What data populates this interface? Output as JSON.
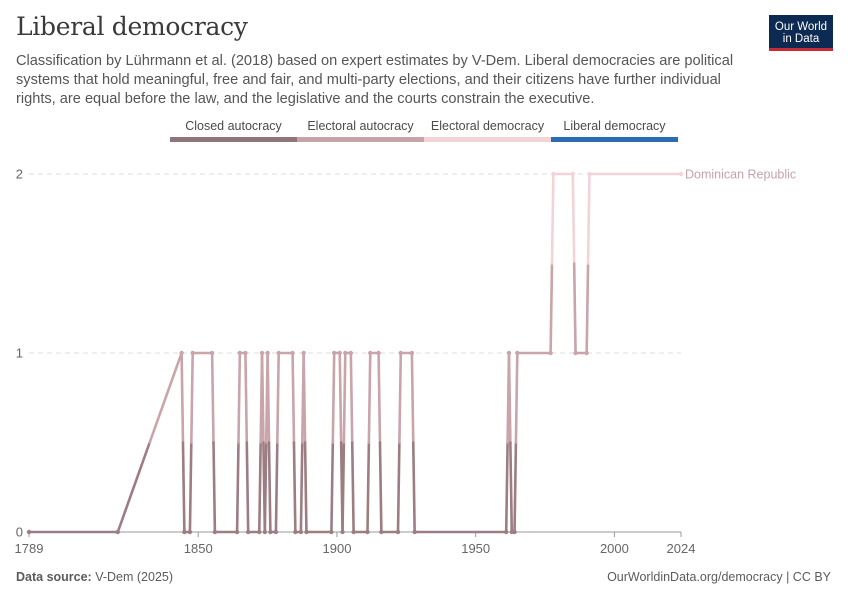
{
  "header": {
    "title": "Liberal democracy",
    "subtitle": "Classification by Lührmann et al. (2018) based on expert estimates by V-Dem. Liberal democracies are political systems that hold meaningful, free and fair, and multi-party elections, and their citizens have further individual rights, are equal before the law, and the legislative and the courts constrain the executive.",
    "logo_line1": "Our World",
    "logo_line2": "in Data"
  },
  "legend": [
    {
      "label": "Closed autocracy",
      "color": "#8f7478"
    },
    {
      "label": "Electoral autocracy",
      "color": "#c5a3a7"
    },
    {
      "label": "Electoral democracy",
      "color": "#f2d4d7"
    },
    {
      "label": "Liberal democracy",
      "color": "#2b6db1"
    }
  ],
  "footer": {
    "source_label": "Data source:",
    "source_value": "V-Dem (2025)",
    "credit": "OurWorldinData.org/democracy | CC BY"
  },
  "chart_data": {
    "type": "line",
    "title": "Liberal democracy",
    "xlabel": "",
    "ylabel": "",
    "xlim": [
      1789,
      2024
    ],
    "ylim": [
      0,
      2
    ],
    "x_ticks": [
      "1789",
      "1850",
      "1900",
      "1950",
      "2000",
      "2024"
    ],
    "x_tick_values": [
      1789,
      1850,
      1900,
      1950,
      2000,
      2024
    ],
    "y_ticks": [
      "0",
      "1",
      "2"
    ],
    "y_tick_values": [
      0,
      1,
      2
    ],
    "grid": "horizontal dashed",
    "series": [
      {
        "name": "Dominican Republic",
        "color": "#c5a3a7",
        "points": [
          [
            1789,
            0
          ],
          [
            1821,
            0
          ],
          [
            1844,
            1
          ],
          [
            1845,
            0
          ],
          [
            1847,
            0
          ],
          [
            1848,
            1
          ],
          [
            1855,
            1
          ],
          [
            1856,
            0
          ],
          [
            1864,
            0
          ],
          [
            1865,
            1
          ],
          [
            1867,
            1
          ],
          [
            1868,
            0
          ],
          [
            1872,
            0
          ],
          [
            1873,
            1
          ],
          [
            1874,
            0
          ],
          [
            1875,
            1
          ],
          [
            1876,
            0
          ],
          [
            1878,
            0
          ],
          [
            1879,
            1
          ],
          [
            1884,
            1
          ],
          [
            1885,
            0
          ],
          [
            1887,
            0
          ],
          [
            1888,
            1
          ],
          [
            1889,
            0
          ],
          [
            1898,
            0
          ],
          [
            1899,
            1
          ],
          [
            1901,
            1
          ],
          [
            1902,
            0
          ],
          [
            1903,
            1
          ],
          [
            1905,
            1
          ],
          [
            1906,
            0
          ],
          [
            1911,
            0
          ],
          [
            1912,
            1
          ],
          [
            1915,
            1
          ],
          [
            1916,
            0
          ],
          [
            1922,
            0
          ],
          [
            1923,
            1
          ],
          [
            1927,
            1
          ],
          [
            1928,
            0
          ],
          [
            1961,
            0
          ],
          [
            1962,
            1
          ],
          [
            1963,
            0
          ],
          [
            1964,
            0
          ],
          [
            1965,
            1
          ],
          [
            1977,
            1
          ],
          [
            1978,
            2
          ],
          [
            1985,
            2
          ],
          [
            1986,
            1
          ],
          [
            1990,
            1
          ],
          [
            1991,
            2
          ],
          [
            2024,
            2
          ]
        ]
      }
    ],
    "series_label": "Dominican Republic"
  }
}
